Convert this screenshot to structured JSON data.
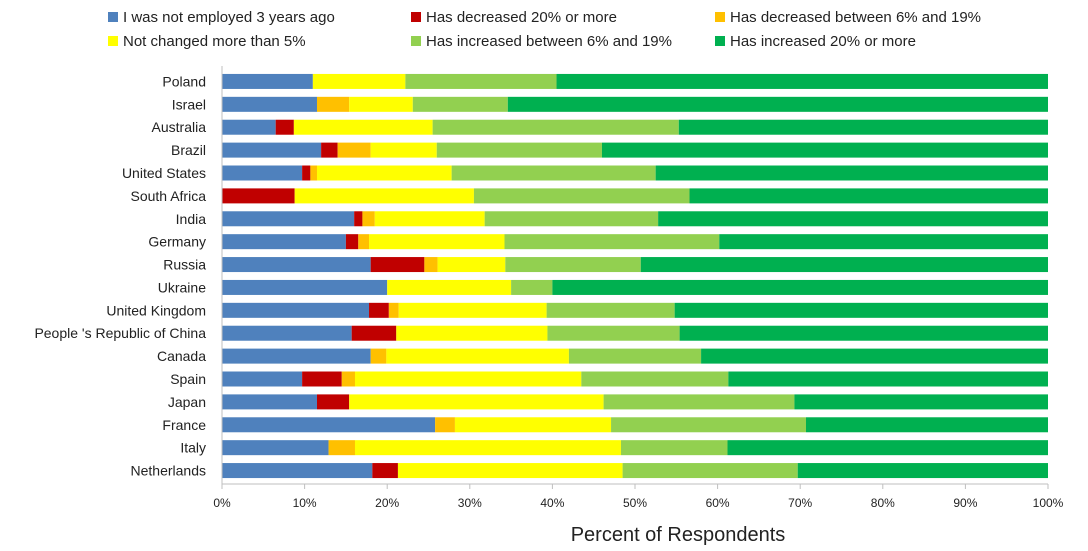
{
  "chart_data": {
    "type": "bar",
    "orientation": "horizontal",
    "stacked": true,
    "title": "",
    "xlabel": "Percent of Respondents",
    "ylabel": "",
    "xlim": [
      0,
      100
    ],
    "grid": false,
    "legend_position": "top",
    "x_ticks": [
      "0%",
      "10%",
      "20%",
      "30%",
      "40%",
      "50%",
      "60%",
      "70%",
      "80%",
      "90%",
      "100%"
    ],
    "categories": [
      "Poland",
      "Israel",
      "Australia",
      "Brazil",
      "United States",
      "South Africa",
      "India",
      "Germany",
      "Russia",
      "Ukraine",
      "United Kingdom",
      "People 's Republic of China",
      "Canada",
      "Spain",
      "Japan",
      "France",
      "Italy",
      "Netherlands"
    ],
    "series": [
      {
        "name": "I was not employed 3 years ago",
        "color": "#4F81BD",
        "values": [
          11.0,
          11.5,
          6.5,
          12.0,
          9.7,
          0.0,
          16.0,
          15.0,
          18.0,
          20.0,
          17.8,
          15.7,
          18.0,
          9.7,
          11.5,
          25.8,
          12.9,
          18.2
        ]
      },
      {
        "name": "Has decreased 20% or more",
        "color": "#C00000",
        "values": [
          0.0,
          0.0,
          2.2,
          2.0,
          1.0,
          8.8,
          1.0,
          1.5,
          6.5,
          0.0,
          2.4,
          5.4,
          0.0,
          4.8,
          3.9,
          0.0,
          0.0,
          3.1
        ]
      },
      {
        "name": "Has decreased between 6% and 19%",
        "color": "#FFC000",
        "values": [
          0.0,
          3.9,
          0.0,
          4.0,
          0.8,
          0.0,
          1.5,
          1.3,
          1.6,
          0.0,
          1.2,
          0.0,
          1.9,
          1.6,
          0.0,
          2.4,
          3.2,
          0.0
        ]
      },
      {
        "name": "Not changed more than 5%",
        "color": "#FFFF00",
        "values": [
          11.2,
          7.7,
          16.8,
          8.0,
          16.3,
          21.7,
          13.3,
          16.4,
          8.2,
          15.0,
          17.9,
          18.3,
          22.1,
          27.4,
          30.8,
          18.9,
          32.2,
          27.2
        ]
      },
      {
        "name": "Has increased between 6% and 19%",
        "color": "#92D050",
        "values": [
          18.3,
          11.5,
          29.8,
          20.0,
          24.7,
          26.1,
          21.0,
          26.0,
          16.4,
          5.0,
          15.5,
          16.0,
          16.0,
          17.8,
          23.1,
          23.6,
          12.9,
          21.2
        ]
      },
      {
        "name": "Has increased 20% or more",
        "color": "#00B050",
        "values": [
          59.5,
          65.4,
          44.7,
          54.0,
          47.5,
          43.4,
          47.2,
          39.8,
          49.3,
          60.0,
          45.2,
          44.6,
          42.0,
          38.7,
          30.7,
          29.3,
          38.8,
          30.3
        ]
      }
    ]
  }
}
